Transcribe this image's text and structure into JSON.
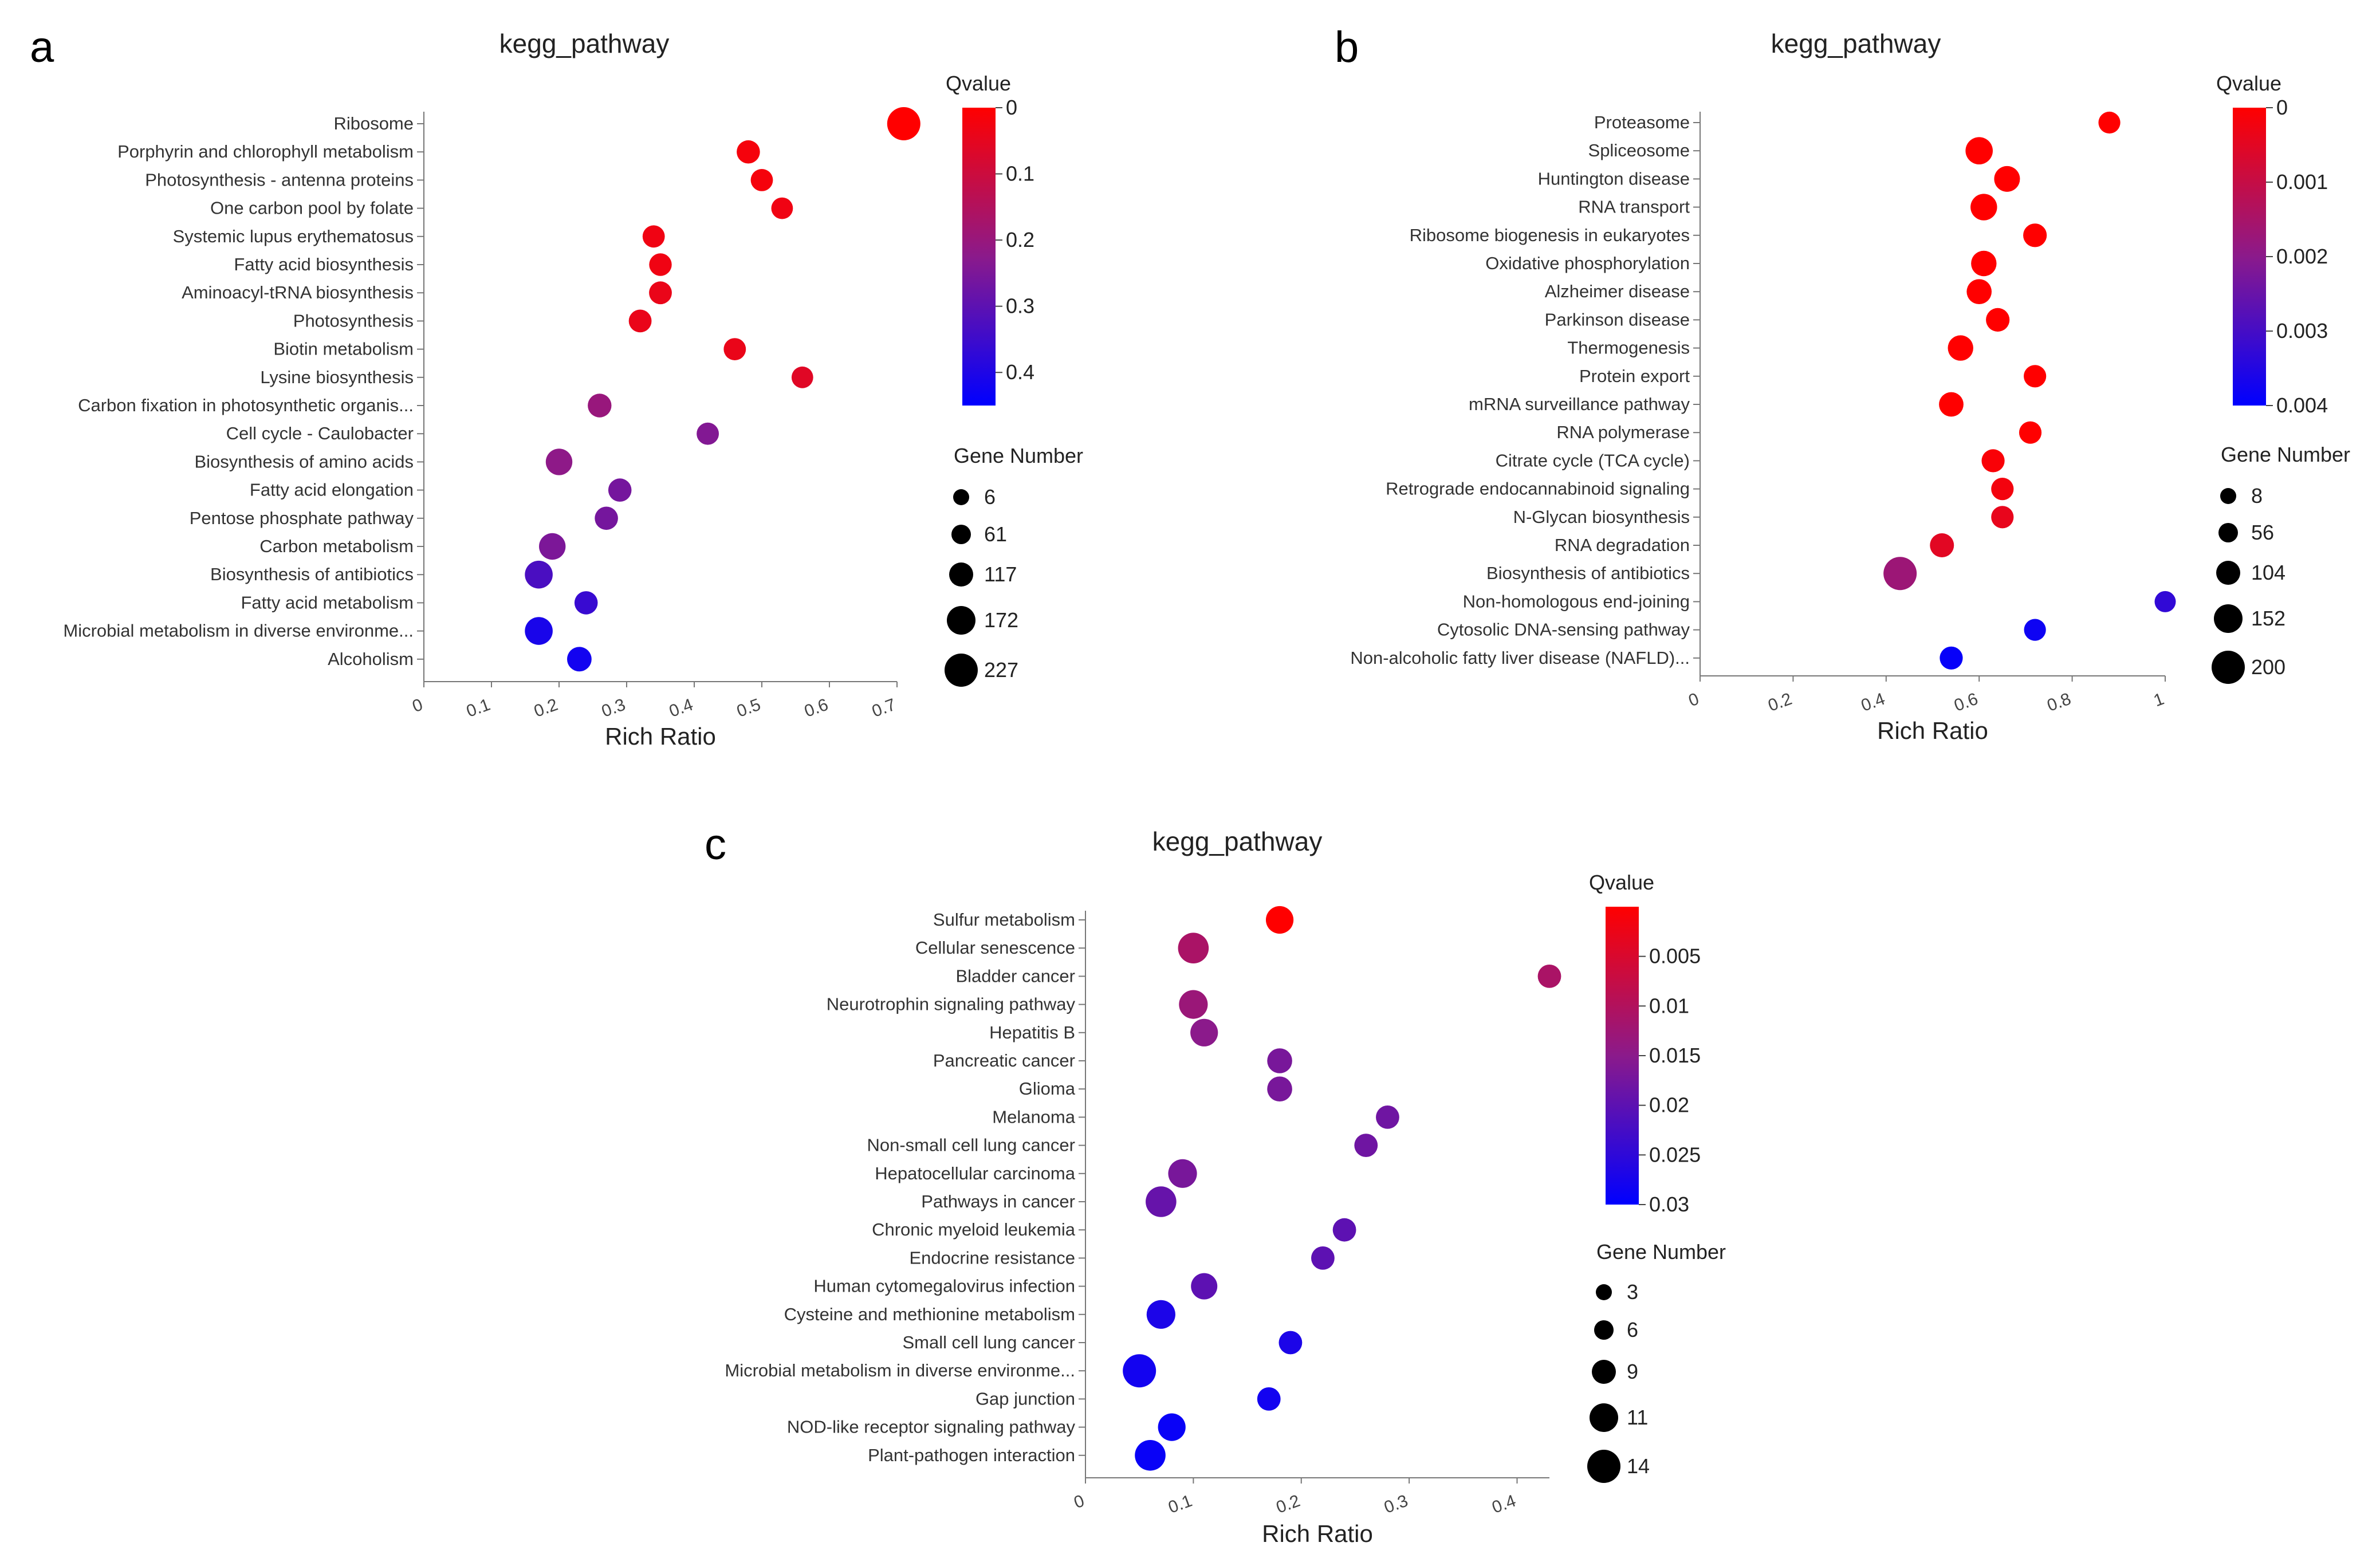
{
  "chart_data": [
    {
      "panel_label": "a",
      "type": "scatter",
      "title": "kegg_pathway",
      "xlabel": "Rich Ratio",
      "xlim": [
        0,
        0.7
      ],
      "xticks": [
        "0",
        "0.1",
        "0.2",
        "0.3",
        "0.4",
        "0.5",
        "0.6",
        "0.7"
      ],
      "colorbar": {
        "title": "Qvalue",
        "ticks": [
          "0",
          "0.1",
          "0.2",
          "0.3",
          "0.4"
        ],
        "range": [
          0,
          0.45
        ],
        "low_color": "#ff0000",
        "high_color": "#0000ff"
      },
      "size_legend": {
        "title": "Gene Number",
        "values": [
          "6",
          "61",
          "117",
          "172",
          "227"
        ]
      },
      "categories": [
        "Ribosome",
        "Porphyrin and chlorophyll metabolism",
        "Photosynthesis - antenna proteins",
        "One carbon pool by folate",
        "Systemic lupus erythematosus",
        "Fatty acid biosynthesis",
        "Aminoacyl-tRNA biosynthesis",
        "Photosynthesis",
        "Biotin metabolism",
        "Lysine biosynthesis",
        "Carbon fixation in photosynthetic organis...",
        "Cell cycle - Caulobacter",
        "Biosynthesis of amino acids",
        "Fatty acid elongation",
        "Pentose phosphate pathway",
        "Carbon metabolism",
        "Biosynthesis of antibiotics",
        "Fatty acid metabolism",
        "Microbial metabolism in diverse environme...",
        "Alcoholism"
      ],
      "rich_ratio": [
        0.71,
        0.48,
        0.5,
        0.53,
        0.34,
        0.35,
        0.35,
        0.32,
        0.46,
        0.56,
        0.26,
        0.42,
        0.2,
        0.29,
        0.27,
        0.19,
        0.17,
        0.24,
        0.17,
        0.23
      ],
      "qvalue": [
        0.0,
        0.02,
        0.02,
        0.03,
        0.03,
        0.03,
        0.04,
        0.04,
        0.04,
        0.06,
        0.2,
        0.24,
        0.22,
        0.26,
        0.26,
        0.25,
        0.33,
        0.36,
        0.41,
        0.42
      ],
      "gene_number": [
        227,
        45,
        35,
        30,
        35,
        38,
        40,
        40,
        35,
        30,
        50,
        35,
        90,
        45,
        45,
        90,
        110,
        45,
        110,
        60
      ]
    },
    {
      "panel_label": "b",
      "type": "scatter",
      "title": "kegg_pathway",
      "xlabel": "Rich Ratio",
      "xlim": [
        0,
        1
      ],
      "xticks": [
        "0",
        "0.2",
        "0.4",
        "0.6",
        "0.8",
        "1"
      ],
      "colorbar": {
        "title": "Qvalue",
        "ticks": [
          "0",
          "0.001",
          "0.002",
          "0.003",
          "0.004"
        ],
        "range": [
          0,
          0.004
        ],
        "low_color": "#ff0000",
        "high_color": "#0000ff"
      },
      "size_legend": {
        "title": "Gene Number",
        "values": [
          "8",
          "56",
          "104",
          "152",
          "200"
        ]
      },
      "categories": [
        "Proteasome",
        "Spliceosome",
        "Huntington disease",
        "RNA transport",
        "Ribosome biogenesis in eukaryotes",
        "Oxidative phosphorylation",
        "Alzheimer disease",
        "Parkinson disease",
        "Thermogenesis",
        "Protein export",
        "mRNA surveillance pathway",
        "RNA polymerase",
        "Citrate cycle (TCA cycle)",
        "Retrograde endocannabinoid signaling",
        "N-Glycan biosynthesis",
        "RNA degradation",
        "Biosynthesis of antibiotics",
        "Non-homologous end-joining",
        "Cytosolic DNA-sensing pathway",
        "Non-alcoholic fatty liver disease (NAFLD)..."
      ],
      "rich_ratio": [
        0.88,
        0.6,
        0.66,
        0.61,
        0.72,
        0.61,
        0.6,
        0.64,
        0.56,
        0.72,
        0.54,
        0.71,
        0.63,
        0.65,
        0.65,
        0.52,
        0.43,
        1.0,
        0.72,
        0.54
      ],
      "qvalue": [
        0.0,
        0.0,
        0.0,
        0.0,
        0.0,
        0.0,
        0.0,
        0.0,
        0.0,
        0.0,
        0.0,
        0.0,
        0.0001,
        0.0002,
        0.0004,
        0.0005,
        0.0017,
        0.0033,
        0.0038,
        0.0039
      ],
      "gene_number": [
        30,
        90,
        70,
        80,
        45,
        65,
        60,
        45,
        65,
        35,
        55,
        35,
        40,
        35,
        35,
        50,
        200,
        25,
        30,
        40
      ]
    },
    {
      "panel_label": "c",
      "type": "scatter",
      "title": "kegg_pathway",
      "xlabel": "Rich Ratio",
      "xlim": [
        0,
        0.43
      ],
      "xticks": [
        "0",
        "0.1",
        "0.2",
        "0.3",
        "0.4"
      ],
      "colorbar": {
        "title": "Qvalue",
        "ticks": [
          "0.005",
          "0.01",
          "0.015",
          "0.02",
          "0.025",
          "0.03"
        ],
        "range": [
          0,
          0.03
        ],
        "low_color": "#ff0000",
        "high_color": "#0000ff"
      },
      "size_legend": {
        "title": "Gene Number",
        "values": [
          "3",
          "6",
          "9",
          "11",
          "14"
        ]
      },
      "categories": [
        "Sulfur metabolism",
        "Cellular senescence",
        "Bladder cancer",
        "Neurotrophin signaling pathway",
        "Hepatitis B",
        "Pancreatic cancer",
        "Glioma",
        "Melanoma",
        "Non-small cell lung cancer",
        "Hepatocellular carcinoma",
        "Pathways in cancer",
        "Chronic myeloid leukemia",
        "Endocrine resistance",
        "Human cytomegalovirus infection",
        "Cysteine and methionine metabolism",
        "Small cell lung cancer",
        "Microbial metabolism in diverse environme...",
        "Gap junction",
        "NOD-like receptor signaling pathway",
        "Plant-pathogen interaction"
      ],
      "rich_ratio": [
        0.18,
        0.1,
        0.43,
        0.1,
        0.11,
        0.18,
        0.18,
        0.28,
        0.26,
        0.09,
        0.07,
        0.24,
        0.22,
        0.11,
        0.07,
        0.19,
        0.05,
        0.17,
        0.08,
        0.06
      ],
      "qvalue": [
        0.0,
        0.011,
        0.011,
        0.013,
        0.015,
        0.017,
        0.017,
        0.018,
        0.018,
        0.017,
        0.019,
        0.02,
        0.02,
        0.02,
        0.027,
        0.027,
        0.028,
        0.028,
        0.029,
        0.029
      ],
      "gene_number": [
        8,
        11,
        5,
        9,
        8,
        6,
        6,
        5,
        5,
        9,
        11,
        5,
        5,
        7,
        9,
        5,
        14,
        5,
        8,
        11
      ]
    }
  ]
}
